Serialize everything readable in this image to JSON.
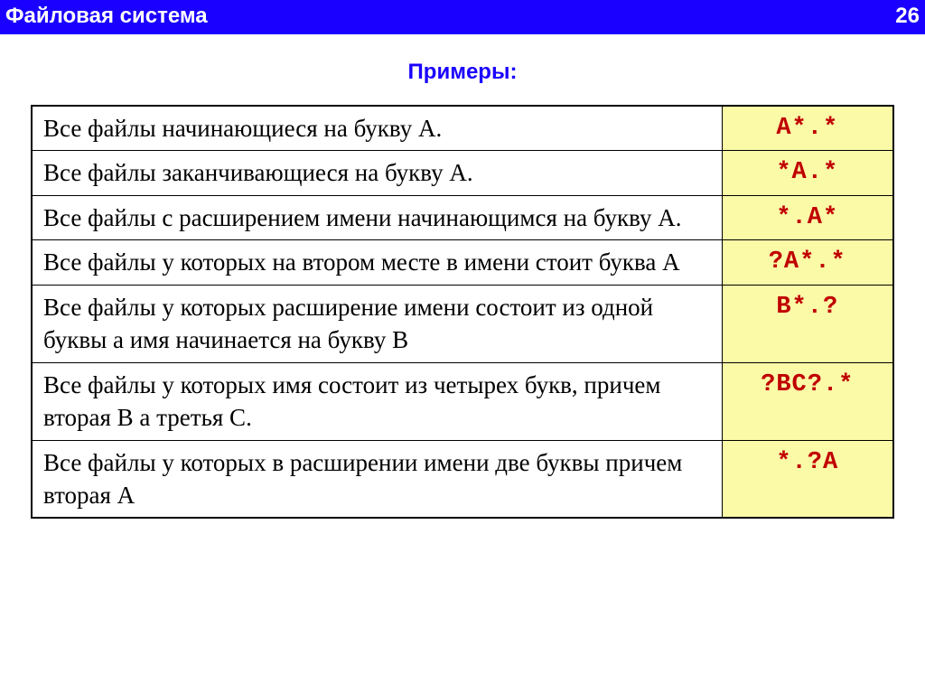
{
  "header": {
    "title": "Файловая система",
    "page": "26"
  },
  "subtitle": "Примеры:",
  "table": {
    "columns": [
      {
        "width_pct": 80,
        "align": "left"
      },
      {
        "width_pct": 20,
        "align": "center"
      }
    ],
    "desc_cell": {
      "font_family": "Times New Roman",
      "font_size_pt": 20,
      "color": "#000000",
      "background": "#ffffff"
    },
    "pattern_cell": {
      "font_family": "Courier New",
      "font_size_pt": 21,
      "color": "#c00000",
      "background": "#fbfaa7",
      "font_weight": "bold"
    },
    "border_color": "#000000",
    "rows": [
      {
        "desc": "Все файлы начинающиеся на букву А.",
        "pattern": "A*.*"
      },
      {
        "desc": "Все файлы заканчивающиеся на букву А.",
        "pattern": "*A.*"
      },
      {
        "desc": "Все файлы  с расширением имени     начинающимся на букву А.",
        "pattern": "*.A*"
      },
      {
        "desc": "Все файлы у которых на втором месте в имени стоит буква А",
        "pattern": "?A*.*"
      },
      {
        "desc": "Все файлы у которых расширение имени состоит из одной буквы а имя начинается на букву  В",
        "pattern": "B*.?"
      },
      {
        "desc": "Все файлы у которых имя состоит из четырех букв, причем вторая В а третья С.",
        "pattern": "?BC?.*"
      },
      {
        "desc": "Все файлы у которых в расширении имени две буквы причем вторая А",
        "pattern": "*.?A"
      }
    ]
  },
  "colors": {
    "header_bg": "#1a00ff",
    "header_text": "#ffffff",
    "subtitle_text": "#1a00ff",
    "page_bg": "#ffffff"
  }
}
